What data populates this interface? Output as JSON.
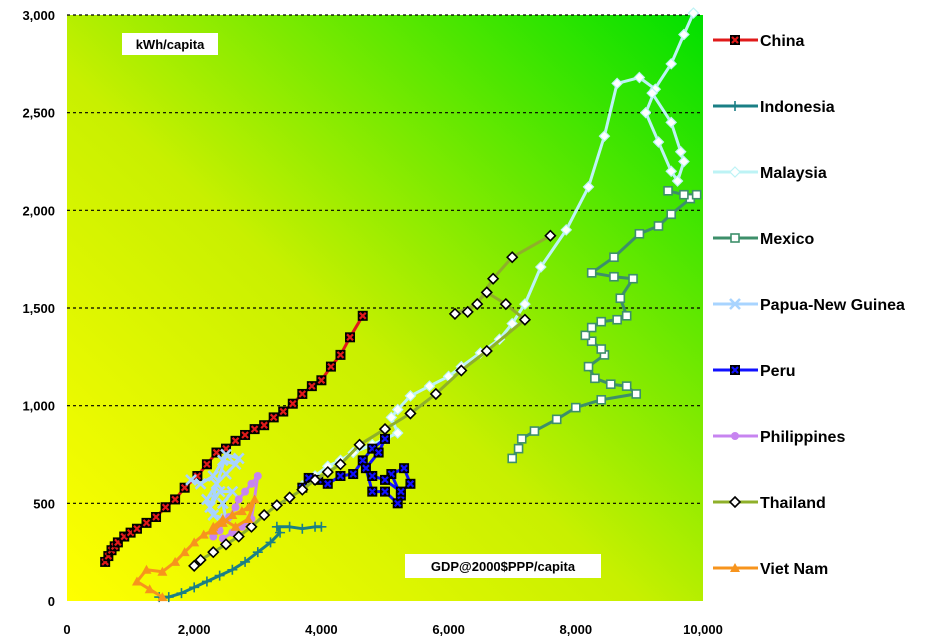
{
  "chart_data": {
    "type": "line",
    "x_ticks": [
      "0",
      "2,000",
      "4,000",
      "6,000",
      "8,000",
      "10,000"
    ],
    "y_ticks": [
      "0",
      "500",
      "1,000",
      "1,500",
      "2,000",
      "2,500",
      "3,000"
    ],
    "xlim": [
      0,
      10000
    ],
    "ylim": [
      0,
      3000
    ],
    "grid": "horizontal dotted",
    "legend_position": "right",
    "background": "gradient yellow to green",
    "annotations": {
      "y_unit": "kWh/capita",
      "x_unit": "GDP@2000$PPP/capita"
    },
    "series": [
      {
        "name": "China",
        "color": "#e01a1a",
        "marker": "x-square",
        "points": [
          [
            600,
            200
          ],
          [
            650,
            230
          ],
          [
            700,
            260
          ],
          [
            750,
            280
          ],
          [
            800,
            300
          ],
          [
            900,
            330
          ],
          [
            1000,
            350
          ],
          [
            1100,
            370
          ],
          [
            1250,
            400
          ],
          [
            1400,
            430
          ],
          [
            1550,
            480
          ],
          [
            1700,
            520
          ],
          [
            1850,
            580
          ],
          [
            2050,
            640
          ],
          [
            2200,
            700
          ],
          [
            2350,
            760
          ],
          [
            2500,
            780
          ],
          [
            2650,
            820
          ],
          [
            2800,
            850
          ],
          [
            2950,
            880
          ],
          [
            3100,
            900
          ],
          [
            3250,
            940
          ],
          [
            3400,
            970
          ],
          [
            3550,
            1010
          ],
          [
            3700,
            1060
          ],
          [
            3850,
            1100
          ],
          [
            4000,
            1130
          ],
          [
            4150,
            1200
          ],
          [
            4300,
            1260
          ],
          [
            4450,
            1350
          ],
          [
            4650,
            1460
          ]
        ]
      },
      {
        "name": "Indonesia",
        "color": "#1a7f85",
        "marker": "plus",
        "points": [
          [
            1450,
            20
          ],
          [
            1600,
            20
          ],
          [
            1800,
            40
          ],
          [
            2000,
            70
          ],
          [
            2200,
            100
          ],
          [
            2400,
            130
          ],
          [
            2600,
            160
          ],
          [
            2800,
            200
          ],
          [
            3000,
            250
          ],
          [
            3200,
            300
          ],
          [
            3350,
            350
          ],
          [
            3300,
            380
          ],
          [
            3500,
            380
          ],
          [
            3700,
            370
          ],
          [
            3900,
            380
          ],
          [
            4000,
            380
          ]
        ]
      },
      {
        "name": "Malaysia",
        "color": "#bdf3f5",
        "marker": "diamond",
        "points": [
          [
            3700,
            590
          ],
          [
            3900,
            640
          ],
          [
            4100,
            690
          ],
          [
            4300,
            720
          ],
          [
            4500,
            760
          ],
          [
            4800,
            800
          ],
          [
            5000,
            830
          ],
          [
            5200,
            860
          ],
          [
            5100,
            940
          ],
          [
            5200,
            980
          ],
          [
            5400,
            1050
          ],
          [
            5700,
            1100
          ],
          [
            6000,
            1150
          ],
          [
            6200,
            1200
          ],
          [
            6500,
            1270
          ],
          [
            6800,
            1340
          ],
          [
            7000,
            1420
          ],
          [
            7200,
            1520
          ],
          [
            7450,
            1710
          ],
          [
            7850,
            1900
          ],
          [
            8200,
            2120
          ],
          [
            8450,
            2380
          ],
          [
            8650,
            2650
          ],
          [
            9000,
            2680
          ],
          [
            9250,
            2620
          ],
          [
            9100,
            2500
          ],
          [
            9300,
            2350
          ],
          [
            9500,
            2200
          ],
          [
            9600,
            2150
          ],
          [
            9700,
            2250
          ],
          [
            9650,
            2300
          ],
          [
            9500,
            2450
          ],
          [
            9200,
            2600
          ],
          [
            9500,
            2750
          ],
          [
            9700,
            2900
          ],
          [
            9850,
            3010
          ]
        ]
      },
      {
        "name": "Mexico",
        "color": "#3d8f6a",
        "marker": "square",
        "points": [
          [
            7000,
            730
          ],
          [
            7100,
            780
          ],
          [
            7150,
            830
          ],
          [
            7350,
            870
          ],
          [
            7700,
            930
          ],
          [
            8000,
            990
          ],
          [
            8400,
            1030
          ],
          [
            8950,
            1060
          ],
          [
            8800,
            1100
          ],
          [
            8550,
            1110
          ],
          [
            8300,
            1140
          ],
          [
            8200,
            1200
          ],
          [
            8450,
            1260
          ],
          [
            8400,
            1290
          ],
          [
            8250,
            1330
          ],
          [
            8150,
            1360
          ],
          [
            8250,
            1400
          ],
          [
            8400,
            1430
          ],
          [
            8650,
            1440
          ],
          [
            8800,
            1460
          ],
          [
            8700,
            1550
          ],
          [
            8900,
            1650
          ],
          [
            8600,
            1660
          ],
          [
            8250,
            1680
          ],
          [
            8600,
            1760
          ],
          [
            9000,
            1880
          ],
          [
            9300,
            1920
          ],
          [
            9500,
            1980
          ],
          [
            9800,
            2060
          ],
          [
            9900,
            2080
          ],
          [
            9700,
            2080
          ],
          [
            9450,
            2100
          ]
        ]
      },
      {
        "name": "Papua-New Guinea",
        "color": "#a8d4ff",
        "marker": "x",
        "points": [
          [
            1950,
            620
          ],
          [
            2100,
            600
          ],
          [
            2300,
            640
          ],
          [
            2450,
            720
          ],
          [
            2650,
            700
          ],
          [
            2500,
            650
          ],
          [
            2350,
            600
          ],
          [
            2200,
            520
          ],
          [
            2300,
            440
          ],
          [
            2500,
            420
          ],
          [
            2450,
            500
          ],
          [
            2600,
            560
          ],
          [
            2400,
            560
          ],
          [
            2250,
            480
          ],
          [
            2500,
            750
          ],
          [
            2700,
            730
          ]
        ]
      },
      {
        "name": "Peru",
        "color": "#1010ff",
        "marker": "x-square",
        "points": [
          [
            3700,
            580
          ],
          [
            3800,
            630
          ],
          [
            3950,
            620
          ],
          [
            4100,
            600
          ],
          [
            4300,
            640
          ],
          [
            4500,
            650
          ],
          [
            4650,
            720
          ],
          [
            4800,
            780
          ],
          [
            5000,
            830
          ],
          [
            4900,
            760
          ],
          [
            4700,
            680
          ],
          [
            4800,
            560
          ],
          [
            5000,
            560
          ],
          [
            5200,
            500
          ],
          [
            5250,
            540
          ],
          [
            5100,
            650
          ],
          [
            5300,
            680
          ],
          [
            5400,
            600
          ],
          [
            5250,
            560
          ],
          [
            5000,
            620
          ],
          [
            4800,
            640
          ]
        ]
      },
      {
        "name": "Philippines",
        "color": "#c784f0",
        "marker": "circle",
        "points": [
          [
            2300,
            330
          ],
          [
            2400,
            360
          ],
          [
            2450,
            400
          ],
          [
            2550,
            430
          ],
          [
            2650,
            480
          ],
          [
            2700,
            520
          ],
          [
            2800,
            560
          ],
          [
            2900,
            600
          ],
          [
            3000,
            640
          ],
          [
            2900,
            420
          ],
          [
            2750,
            380
          ],
          [
            2600,
            350
          ],
          [
            2450,
            320
          ]
        ]
      },
      {
        "name": "Thailand",
        "color": "#8fb02a",
        "marker": "diamond-dark",
        "points": [
          [
            2000,
            180
          ],
          [
            2100,
            210
          ],
          [
            2300,
            250
          ],
          [
            2500,
            290
          ],
          [
            2700,
            330
          ],
          [
            2900,
            380
          ],
          [
            3100,
            440
          ],
          [
            3300,
            490
          ],
          [
            3500,
            530
          ],
          [
            3700,
            570
          ],
          [
            3900,
            620
          ],
          [
            4100,
            660
          ],
          [
            4300,
            700
          ],
          [
            4600,
            800
          ],
          [
            5000,
            880
          ],
          [
            5400,
            960
          ],
          [
            5800,
            1060
          ],
          [
            6200,
            1180
          ],
          [
            6600,
            1280
          ],
          [
            7200,
            1440
          ],
          [
            6900,
            1520
          ],
          [
            6600,
            1580
          ],
          [
            6300,
            1480
          ],
          [
            6100,
            1470
          ],
          [
            6450,
            1520
          ],
          [
            6700,
            1650
          ],
          [
            7000,
            1760
          ],
          [
            7600,
            1870
          ]
        ]
      },
      {
        "name": "Viet Nam",
        "color": "#f7941d",
        "marker": "triangle",
        "points": [
          [
            1500,
            20
          ],
          [
            1300,
            60
          ],
          [
            1100,
            100
          ],
          [
            1250,
            160
          ],
          [
            1500,
            150
          ],
          [
            1700,
            200
          ],
          [
            1850,
            250
          ],
          [
            2000,
            300
          ],
          [
            2150,
            340
          ],
          [
            2300,
            360
          ],
          [
            2450,
            400
          ],
          [
            2600,
            440
          ],
          [
            2750,
            460
          ],
          [
            2850,
            480
          ],
          [
            2950,
            520
          ],
          [
            2850,
            420
          ],
          [
            2650,
            380
          ],
          [
            2450,
            420
          ],
          [
            2300,
            380
          ]
        ]
      }
    ]
  }
}
